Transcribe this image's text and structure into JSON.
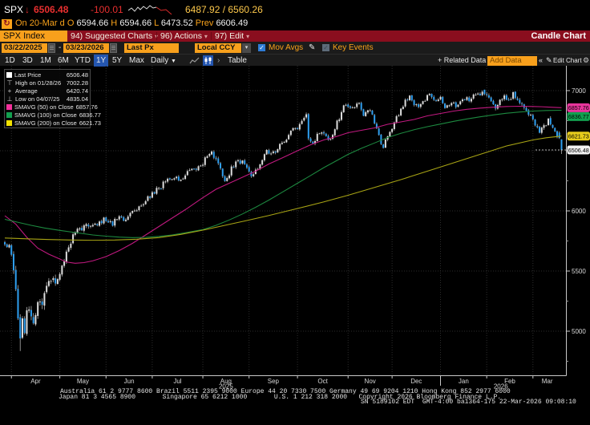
{
  "header": {
    "ticker": "SPX",
    "direction_icon": "down-arrow",
    "last": "6506.48",
    "change": "-100.01",
    "bid_ask": "6487.92 / 6560.26",
    "session": {
      "prefix": "On",
      "date": "20-Mar",
      "flag": "d",
      "o_label": "O",
      "open": "6594.66",
      "h_label": "H",
      "high": "6594.66",
      "l_label": "L",
      "low": "6473.52",
      "prev_label": "Prev",
      "prev": "6606.49"
    },
    "sparkline": {
      "white": [
        [
          0,
          9
        ],
        [
          4,
          6
        ],
        [
          8,
          10
        ],
        [
          12,
          5
        ],
        [
          15,
          8
        ],
        [
          19,
          4
        ],
        [
          23,
          7
        ],
        [
          27,
          3
        ],
        [
          31,
          6
        ],
        [
          35,
          5
        ]
      ],
      "red": [
        [
          35,
          5
        ],
        [
          41,
          9
        ],
        [
          47,
          8
        ],
        [
          54,
          14
        ]
      ]
    }
  },
  "menu": {
    "tab": "SPX Index",
    "items": [
      {
        "key": "94)",
        "label": "Suggested Charts"
      },
      {
        "key": "96)",
        "label": "Actions"
      },
      {
        "key": "97)",
        "label": "Edit"
      }
    ],
    "right": "Candle Chart"
  },
  "toolbar": {
    "date_from": "03/22/2025",
    "range_dash": "-",
    "date_to": "03/23/2026",
    "px_field": "Last Px",
    "ccy_field": "Local CCY",
    "mov_avgs": "Mov Avgs",
    "key_events": "Key Events",
    "ranges": [
      "1D",
      "3D",
      "1M",
      "6M",
      "YTD",
      "1Y",
      "5Y",
      "Max"
    ],
    "active_range": "1Y",
    "frequency": "Daily",
    "table": "Table",
    "related_data": "+ Related Data",
    "add_data_placeholder": "Add Data",
    "edit_chart": "Edit Chart"
  },
  "legend": {
    "rows": [
      {
        "marker": "square",
        "color": "#ffffff",
        "label": "Last Price",
        "value": "6506.48"
      },
      {
        "marker": "high",
        "color": "#cfcfcf",
        "label": "High on 01/28/26",
        "value": "7002.28"
      },
      {
        "marker": "avg",
        "color": "#cfcfcf",
        "label": "Average",
        "value": "6420.74"
      },
      {
        "marker": "low",
        "color": "#cfcfcf",
        "label": "Low on 04/07/25",
        "value": "4835.04"
      },
      {
        "marker": "square",
        "color": "#f5309b",
        "label": "SMAVG (50)  on Close",
        "value": "6857.76"
      },
      {
        "marker": "square",
        "color": "#12a14f",
        "label": "SMAVG (100)  on Close",
        "value": "6836.77"
      },
      {
        "marker": "square",
        "color": "#f3e300",
        "label": "SMAVG (200)  on Close",
        "value": "6621.73"
      }
    ]
  },
  "footer": {
    "line1": "Australia 61 2 9777 8600 Brazil 5511 2395 9000 Europe 44 20 7330 7500 Germany 49 69 9204 1210 Hong Kong 852 2977 6000",
    "line2": "Japan 81 3 4565 8900       Singapore 65 6212 1000       U.S. 1 212 318 2000   Copyright 2026 Bloomberg Finance L.P.",
    "line3": "SN 5189102 EDT  GMT-4:00 ba1364-175 22-Mar-2026 09:08:10"
  },
  "chart_data": {
    "type": "candlestick",
    "symbol": "SPX Index",
    "frequency": "Daily",
    "range": [
      "03/22/2025",
      "03/23/2026"
    ],
    "ylim": [
      4630,
      7195
    ],
    "yticks": [
      5000,
      5500,
      6000,
      6500,
      7000
    ],
    "yticks_minor": [
      4750,
      5250,
      5750,
      6250,
      6750
    ],
    "months": [
      "Apr",
      "May",
      "Jun",
      "Jul",
      "Aug",
      "Sep",
      "Oct",
      "Nov",
      "Dec",
      "Jan",
      "Feb",
      "Mar"
    ],
    "month_start_day": [
      3,
      25,
      46,
      67,
      90,
      111,
      133,
      156,
      176,
      198,
      219,
      240
    ],
    "years": [
      "2025",
      "2026"
    ],
    "year_boundary_day": 198,
    "num_days": 254,
    "last_bar": {
      "date": "20-Mar",
      "open": 6594.66,
      "high": 6594.66,
      "low": 6473.52,
      "close": 6506.48,
      "prev_close": 6606.49
    },
    "high_marker": {
      "date": "01/28/26",
      "value": 7002.28,
      "day": 217
    },
    "low_marker": {
      "date": "04/07/25",
      "value": 4835.04,
      "day": 7
    },
    "average": 6420.74,
    "up_color": "#dedede",
    "down_color": "#2f9ff0",
    "close_anchors": [
      [
        0,
        5720
      ],
      [
        2,
        5700
      ],
      [
        3,
        5650
      ],
      [
        4,
        5500
      ],
      [
        5,
        5320
      ],
      [
        6,
        5130
      ],
      [
        7,
        4940
      ],
      [
        8,
        5100
      ],
      [
        9,
        5010
      ],
      [
        10,
        5220
      ],
      [
        11,
        5170
      ],
      [
        13,
        5070
      ],
      [
        15,
        5290
      ],
      [
        17,
        5250
      ],
      [
        19,
        5340
      ],
      [
        21,
        5430
      ],
      [
        23,
        5390
      ],
      [
        25,
        5480
      ],
      [
        28,
        5660
      ],
      [
        31,
        5790
      ],
      [
        34,
        5850
      ],
      [
        37,
        5890
      ],
      [
        40,
        5870
      ],
      [
        43,
        5915
      ],
      [
        46,
        5920
      ],
      [
        49,
        5895
      ],
      [
        52,
        5955
      ],
      [
        55,
        5925
      ],
      [
        58,
        5995
      ],
      [
        61,
        6035
      ],
      [
        64,
        6095
      ],
      [
        67,
        6145
      ],
      [
        70,
        6195
      ],
      [
        73,
        6235
      ],
      [
        76,
        6275
      ],
      [
        79,
        6255
      ],
      [
        82,
        6305
      ],
      [
        85,
        6335
      ],
      [
        88,
        6375
      ],
      [
        90,
        6405
      ],
      [
        92,
        6455
      ],
      [
        94,
        6480
      ],
      [
        96,
        6415
      ],
      [
        98,
        6335
      ],
      [
        100,
        6265
      ],
      [
        102,
        6315
      ],
      [
        104,
        6385
      ],
      [
        106,
        6425
      ],
      [
        108,
        6405
      ],
      [
        111,
        6330
      ],
      [
        113,
        6290
      ],
      [
        115,
        6360
      ],
      [
        117,
        6440
      ],
      [
        119,
        6500
      ],
      [
        122,
        6480
      ],
      [
        125,
        6550
      ],
      [
        128,
        6610
      ],
      [
        131,
        6670
      ],
      [
        133,
        6700
      ],
      [
        135,
        6760
      ],
      [
        137,
        6790
      ],
      [
        138,
        6600
      ],
      [
        140,
        6580
      ],
      [
        142,
        6620
      ],
      [
        144,
        6650
      ],
      [
        146,
        6620
      ],
      [
        148,
        6600
      ],
      [
        150,
        6680
      ],
      [
        152,
        6780
      ],
      [
        154,
        6860
      ],
      [
        156,
        6880
      ],
      [
        158,
        6850
      ],
      [
        160,
        6900
      ],
      [
        162,
        6860
      ],
      [
        163,
        6790
      ],
      [
        165,
        6850
      ],
      [
        167,
        6800
      ],
      [
        169,
        6680
      ],
      [
        171,
        6560
      ],
      [
        172,
        6540
      ],
      [
        174,
        6620
      ],
      [
        176,
        6700
      ],
      [
        178,
        6780
      ],
      [
        180,
        6850
      ],
      [
        182,
        6920
      ],
      [
        184,
        6950
      ],
      [
        186,
        6900
      ],
      [
        188,
        6870
      ],
      [
        190,
        6920
      ],
      [
        193,
        6955
      ],
      [
        196,
        6920
      ],
      [
        198,
        6955
      ],
      [
        200,
        6860
      ],
      [
        202,
        6890
      ],
      [
        205,
        6880
      ],
      [
        208,
        6945
      ],
      [
        211,
        6920
      ],
      [
        214,
        6965
      ],
      [
        217,
        6990
      ],
      [
        219,
        6955
      ],
      [
        221,
        6900
      ],
      [
        223,
        6840
      ],
      [
        225,
        6910
      ],
      [
        227,
        6955
      ],
      [
        229,
        6930
      ],
      [
        231,
        6965
      ],
      [
        233,
        6940
      ],
      [
        235,
        6900
      ],
      [
        237,
        6840
      ],
      [
        238,
        6805
      ],
      [
        240,
        6750
      ],
      [
        242,
        6680
      ],
      [
        243,
        6645
      ],
      [
        245,
        6700
      ],
      [
        247,
        6745
      ],
      [
        248,
        6720
      ],
      [
        249,
        6685
      ],
      [
        250,
        6660
      ],
      [
        251,
        6645
      ],
      [
        252,
        6606.49
      ],
      [
        253,
        6506.48
      ]
    ],
    "smavg50": {
      "label": "SMAVG (50) on Close",
      "color": "#c21980",
      "tag_color": "#e8359c",
      "last": 6857.76,
      "points": [
        [
          0,
          5960
        ],
        [
          5,
          5890
        ],
        [
          10,
          5780
        ],
        [
          15,
          5690
        ],
        [
          20,
          5640
        ],
        [
          25,
          5600
        ],
        [
          28,
          5575
        ],
        [
          32,
          5565
        ],
        [
          36,
          5570
        ],
        [
          40,
          5585
        ],
        [
          46,
          5620
        ],
        [
          52,
          5670
        ],
        [
          58,
          5730
        ],
        [
          64,
          5800
        ],
        [
          70,
          5870
        ],
        [
          76,
          5940
        ],
        [
          82,
          6010
        ],
        [
          90,
          6110
        ],
        [
          96,
          6180
        ],
        [
          102,
          6230
        ],
        [
          108,
          6280
        ],
        [
          114,
          6330
        ],
        [
          120,
          6390
        ],
        [
          126,
          6440
        ],
        [
          133,
          6500
        ],
        [
          139,
          6550
        ],
        [
          145,
          6590
        ],
        [
          151,
          6620
        ],
        [
          156,
          6650
        ],
        [
          162,
          6670
        ],
        [
          168,
          6690
        ],
        [
          174,
          6720
        ],
        [
          180,
          6740
        ],
        [
          186,
          6760
        ],
        [
          192,
          6790
        ],
        [
          198,
          6810
        ],
        [
          204,
          6830
        ],
        [
          210,
          6845
        ],
        [
          216,
          6855
        ],
        [
          222,
          6862
        ],
        [
          228,
          6868
        ],
        [
          234,
          6870
        ],
        [
          240,
          6868
        ],
        [
          244,
          6866
        ],
        [
          248,
          6862
        ],
        [
          253,
          6857.76
        ]
      ]
    },
    "smavg100": {
      "label": "SMAVG (100) on Close",
      "color": "#1d8a40",
      "tag_color": "#12a14f",
      "last": 6836.77,
      "points": [
        [
          0,
          5930
        ],
        [
          6,
          5905
        ],
        [
          12,
          5880
        ],
        [
          18,
          5858
        ],
        [
          25,
          5838
        ],
        [
          32,
          5820
        ],
        [
          40,
          5800
        ],
        [
          46,
          5790
        ],
        [
          52,
          5782
        ],
        [
          58,
          5778
        ],
        [
          64,
          5780
        ],
        [
          70,
          5788
        ],
        [
          76,
          5800
        ],
        [
          82,
          5818
        ],
        [
          90,
          5845
        ],
        [
          96,
          5880
        ],
        [
          102,
          5925
        ],
        [
          108,
          5975
        ],
        [
          114,
          6030
        ],
        [
          120,
          6090
        ],
        [
          126,
          6155
        ],
        [
          133,
          6230
        ],
        [
          139,
          6295
        ],
        [
          145,
          6360
        ],
        [
          151,
          6420
        ],
        [
          156,
          6470
        ],
        [
          162,
          6520
        ],
        [
          168,
          6565
        ],
        [
          174,
          6610
        ],
        [
          180,
          6645
        ],
        [
          186,
          6675
        ],
        [
          192,
          6700
        ],
        [
          198,
          6722
        ],
        [
          204,
          6745
        ],
        [
          210,
          6765
        ],
        [
          216,
          6782
        ],
        [
          222,
          6798
        ],
        [
          228,
          6812
        ],
        [
          234,
          6822
        ],
        [
          240,
          6830
        ],
        [
          246,
          6835
        ],
        [
          253,
          6836.77
        ]
      ]
    },
    "smavg200": {
      "label": "SMAVG (200) on Close",
      "color": "#a8a414",
      "tag_color": "#e6cb1c",
      "last": 6621.73,
      "points": [
        [
          0,
          5775
        ],
        [
          10,
          5768
        ],
        [
          20,
          5762
        ],
        [
          30,
          5758
        ],
        [
          40,
          5756
        ],
        [
          50,
          5758
        ],
        [
          60,
          5765
        ],
        [
          70,
          5778
        ],
        [
          80,
          5805
        ],
        [
          90,
          5840
        ],
        [
          100,
          5880
        ],
        [
          110,
          5920
        ],
        [
          120,
          5962
        ],
        [
          133,
          6020
        ],
        [
          145,
          6075
        ],
        [
          156,
          6130
        ],
        [
          168,
          6195
        ],
        [
          180,
          6260
        ],
        [
          192,
          6330
        ],
        [
          204,
          6400
        ],
        [
          216,
          6470
        ],
        [
          228,
          6540
        ],
        [
          240,
          6590
        ],
        [
          246,
          6608
        ],
        [
          253,
          6621.73
        ]
      ]
    },
    "last_price_tag": {
      "value": "6506.48",
      "color": "#f2f2f2"
    }
  }
}
